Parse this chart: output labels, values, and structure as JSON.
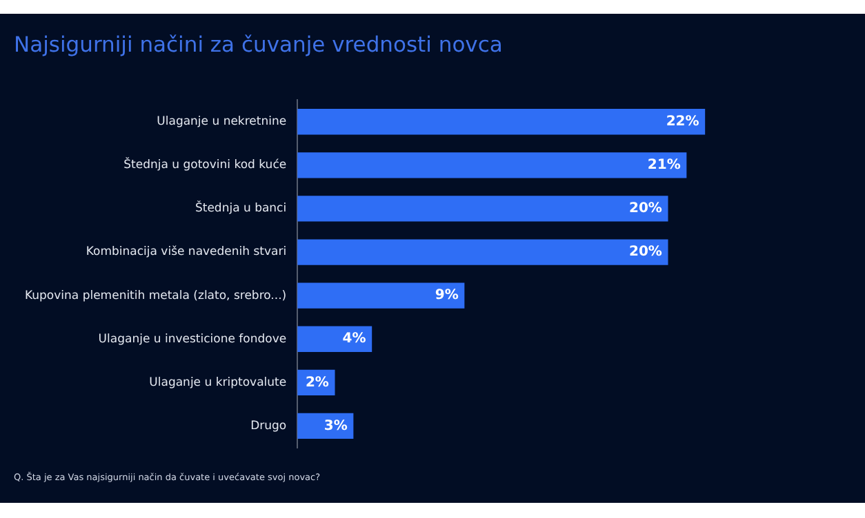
{
  "chart_data": {
    "type": "bar",
    "orientation": "horizontal",
    "title": "Najsigurniji načini za čuvanje vrednosti novca",
    "categories": [
      "Ulaganje u nekretnine",
      "Štednja u gotovini kod kuće",
      "Štednja u banci",
      "Kombinacija više navedenih stvari",
      "Kupovina plemenitih metala (zlato, srebro...)",
      "Ulaganje u investicione fondove",
      "Ulaganje u kriptovalute",
      "Drugo"
    ],
    "values": [
      22,
      21,
      20,
      20,
      9,
      4,
      2,
      3
    ],
    "value_labels": [
      "22%",
      "21%",
      "20%",
      "20%",
      "9%",
      "4%",
      "2%",
      "3%"
    ],
    "color": "#2f6ef5",
    "legend": false,
    "annotations": [
      "Q. Šta je za Vas najsigurniji način da čuvate i uvećavate svoj novac?"
    ]
  }
}
